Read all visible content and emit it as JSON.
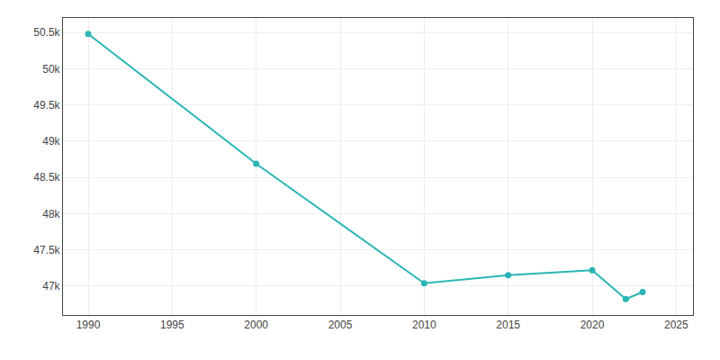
{
  "chart_data": {
    "type": "line",
    "x": [
      1990,
      2000,
      2010,
      2015,
      2020,
      2022,
      2023
    ],
    "values": [
      50480,
      48688,
      47037,
      47149,
      47218,
      46820,
      46917
    ],
    "color": "#2ab5b5",
    "marker": "circle",
    "xlim": [
      1988.5,
      2026
    ],
    "xticks": [
      1990,
      1995,
      2000,
      2005,
      2010,
      2015,
      2020,
      2025
    ],
    "ylim": [
      46600,
      50700
    ],
    "yticks": [
      {
        "value": 47000,
        "label": "47k"
      },
      {
        "value": 47500,
        "label": "47.5k"
      },
      {
        "value": 48000,
        "label": "48k"
      },
      {
        "value": 48500,
        "label": "48.5k"
      },
      {
        "value": 49000,
        "label": "49k"
      },
      {
        "value": 49500,
        "label": "49.5k"
      },
      {
        "value": 50000,
        "label": "50k"
      },
      {
        "value": 50500,
        "label": "50.5k"
      }
    ],
    "grid": true
  }
}
